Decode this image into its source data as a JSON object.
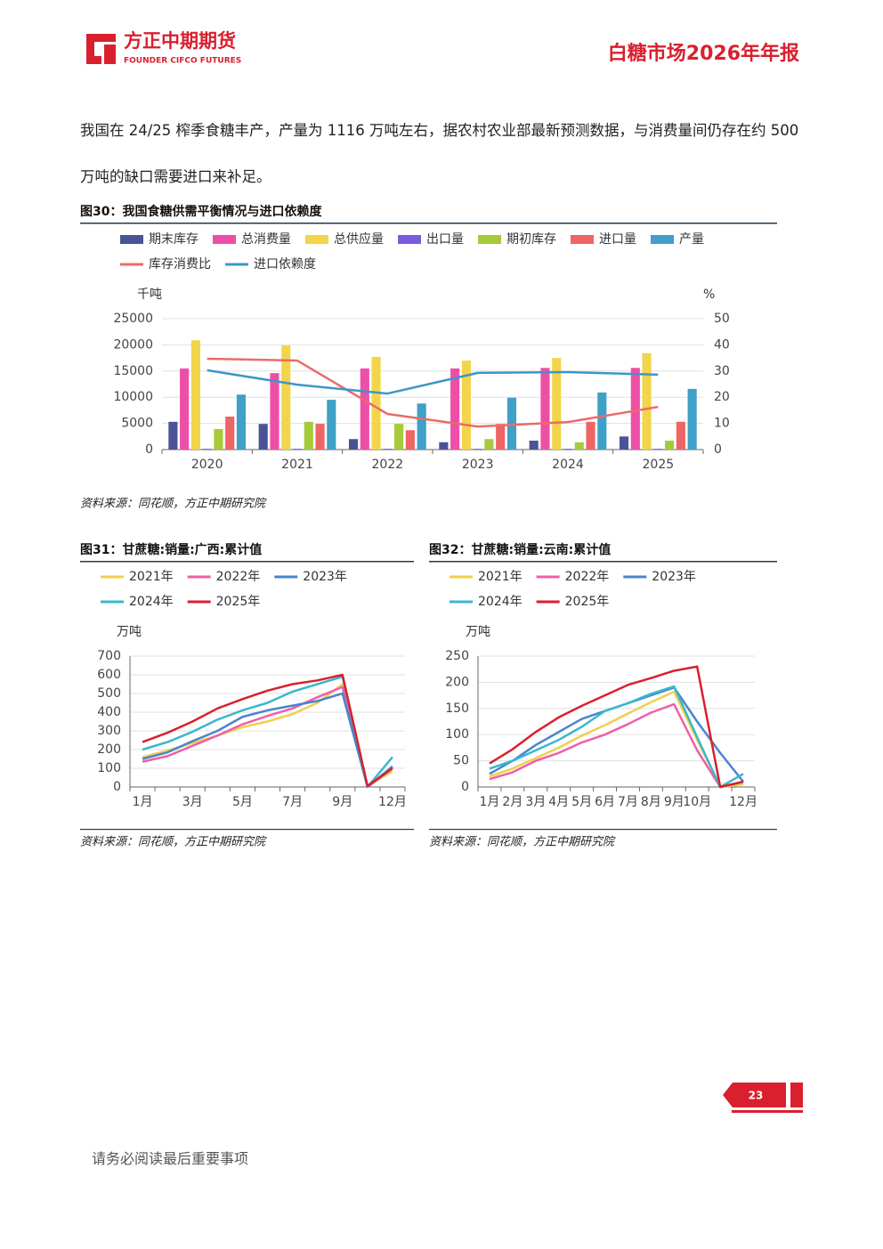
{
  "header": {
    "company": "方正中期期货",
    "company_en": "FOUNDER CIFCO FUTURES",
    "report_title": "白糖市场2026年年报"
  },
  "body": {
    "paragraph": "我国在 24/25 榨季食糖丰产，产量为 1116 万吨左右，据农村农业部最新预测数据，与消费量间仍存在约 500 万吨的缺口需要进口来补足。"
  },
  "chart_data": [
    {
      "type": "bar",
      "title": "图30：我国食糖供需平衡情况与进口依赖度",
      "source": "资料来源：同花顺，方正中期研究院",
      "y_label": "千吨",
      "y2_label": "%",
      "categories": [
        "2020",
        "2021",
        "2022",
        "2023",
        "2024",
        "2025"
      ],
      "ylim": [
        0,
        25000
      ],
      "yticks": [
        0,
        5000,
        10000,
        15000,
        20000,
        25000
      ],
      "y2lim": [
        0,
        50
      ],
      "y2ticks": [
        0,
        10,
        20,
        30,
        40,
        50
      ],
      "grid": true,
      "series": [
        {
          "name": "期末库存",
          "color": "#4a5396",
          "values": [
            5300,
            4900,
            2000,
            1400,
            1700,
            2500
          ]
        },
        {
          "name": "总消费量",
          "color": "#ee4fa6",
          "values": [
            15500,
            14600,
            15500,
            15500,
            15600,
            15600
          ]
        },
        {
          "name": "总供应量",
          "color": "#f2d54a",
          "values": [
            20900,
            19900,
            17700,
            17000,
            17500,
            18400
          ]
        },
        {
          "name": "出口量",
          "color": "#7a5ce0",
          "values": [
            150,
            150,
            150,
            150,
            150,
            150
          ]
        },
        {
          "name": "期初库存",
          "color": "#a5cb3a",
          "values": [
            3900,
            5300,
            4900,
            2000,
            1400,
            1700
          ]
        },
        {
          "name": "进口量",
          "color": "#ef6464",
          "values": [
            6300,
            4900,
            3700,
            4900,
            5300,
            5300
          ]
        },
        {
          "name": "产量",
          "color": "#3fa0c8",
          "values": [
            10500,
            9500,
            8800,
            9900,
            10900,
            11600
          ]
        },
        {
          "name": "库存消费比",
          "color": "#ec6a6a",
          "type": "line",
          "axis": "y2",
          "values": [
            34.7,
            34.0,
            13.6,
            8.8,
            10.5,
            16.3
          ]
        },
        {
          "name": "进口依赖度",
          "color": "#3a97c8",
          "type": "line",
          "axis": "y2",
          "values": [
            30.3,
            24.8,
            21.4,
            29.3,
            29.6,
            28.6
          ]
        }
      ]
    },
    {
      "type": "line",
      "title": "图31：甘蔗糖:销量:广西:累计值",
      "source": "资料来源：同花顺，方正中期研究院",
      "y_label": "万吨",
      "categories": [
        "1月",
        null,
        "3月",
        null,
        "5月",
        null,
        "7月",
        null,
        "9月",
        null,
        "12月"
      ],
      "ylim": [
        0,
        700
      ],
      "yticks": [
        0,
        100,
        200,
        300,
        400,
        500,
        600,
        700
      ],
      "grid": true,
      "series": [
        {
          "name": "2021年",
          "color": "#f2cf4a",
          "values": [
            160,
            195,
            235,
            275,
            320,
            350,
            390,
            450,
            550,
            5,
            85
          ]
        },
        {
          "name": "2022年",
          "color": "#ee5fa8",
          "values": [
            135,
            165,
            220,
            275,
            335,
            380,
            420,
            480,
            535,
            0,
            100
          ]
        },
        {
          "name": "2023年",
          "color": "#4a85cc",
          "values": [
            150,
            185,
            245,
            300,
            375,
            410,
            435,
            460,
            500,
            0,
            110
          ]
        },
        {
          "name": "2024年",
          "color": "#3ab7cf",
          "values": [
            200,
            240,
            295,
            360,
            410,
            450,
            510,
            550,
            590,
            0,
            160
          ]
        },
        {
          "name": "2025年",
          "color": "#d9202e",
          "values": [
            240,
            290,
            350,
            420,
            470,
            515,
            550,
            570,
            600,
            5,
            100
          ]
        }
      ]
    },
    {
      "type": "line",
      "title": "图32：甘蔗糖:销量:云南:累计值",
      "source": "资料来源：同花顺，方正中期研究院",
      "y_label": "万吨",
      "categories": [
        "1月",
        "2月",
        "3月",
        "4月",
        "5月",
        "6月",
        "7月",
        "8月",
        "9月",
        "10月",
        null,
        "12月"
      ],
      "ylim": [
        0,
        250
      ],
      "yticks": [
        0,
        50,
        100,
        150,
        200,
        250
      ],
      "grid": true,
      "series": [
        {
          "name": "2021年",
          "color": "#f2cf4a",
          "values": [
            20,
            35,
            55,
            75,
            98,
            118,
            140,
            162,
            182,
            90,
            0,
            5
          ]
        },
        {
          "name": "2022年",
          "color": "#ee5fa8",
          "values": [
            15,
            28,
            50,
            65,
            85,
            100,
            120,
            142,
            158,
            70,
            0,
            10
          ]
        },
        {
          "name": "2023年",
          "color": "#4a85cc",
          "values": [
            25,
            50,
            80,
            105,
            130,
            145,
            160,
            175,
            190,
            125,
            65,
            10
          ]
        },
        {
          "name": "2024年",
          "color": "#3ab7cf",
          "values": [
            35,
            50,
            70,
            90,
            115,
            145,
            160,
            178,
            192,
            95,
            0,
            25
          ]
        },
        {
          "name": "2025年",
          "color": "#d9202e",
          "values": [
            45,
            72,
            105,
            133,
            155,
            175,
            195,
            208,
            222,
            230,
            0,
            10
          ]
        }
      ]
    }
  ],
  "footer": {
    "page": "23",
    "notice": "请务必阅读最后重要事项"
  }
}
